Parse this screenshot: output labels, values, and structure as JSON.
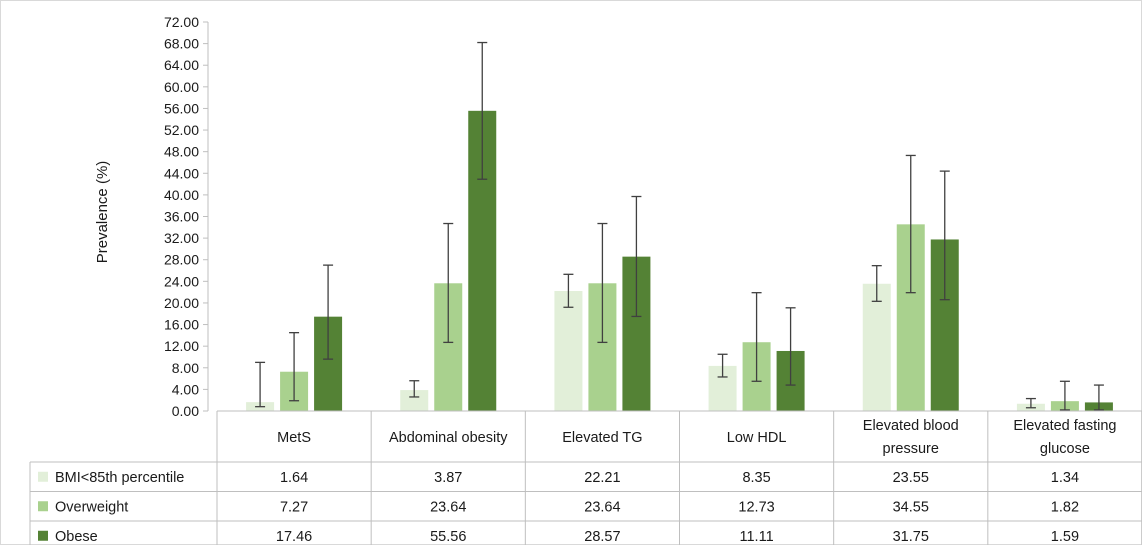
{
  "chart_data": {
    "type": "bar",
    "ylabel": "Prevalence (%)",
    "ylim": [
      0,
      72
    ],
    "yticks": [
      "0.00",
      "4.00",
      "8.00",
      "12.00",
      "16.00",
      "20.00",
      "24.00",
      "28.00",
      "32.00",
      "36.00",
      "40.00",
      "44.00",
      "48.00",
      "52.00",
      "56.00",
      "60.00",
      "64.00",
      "68.00",
      "72.00"
    ],
    "grid": false,
    "legend_placement": "data-table-left",
    "categories": [
      [
        "MetS"
      ],
      [
        "Abdominal obesity"
      ],
      [
        "Elevated TG"
      ],
      [
        "Low HDL"
      ],
      [
        "Elevated blood",
        "pressure"
      ],
      [
        "Elevated fasting",
        "glucose"
      ]
    ],
    "series": [
      {
        "name": "BMI<85th percentile",
        "color": "#e2efd9",
        "values": [
          1.64,
          3.87,
          22.21,
          8.35,
          23.55,
          1.34
        ],
        "labels": [
          "1.64",
          "3.87",
          "22.21",
          "8.35",
          "23.55",
          "1.34"
        ],
        "error_low": [
          0.8,
          2.6,
          19.2,
          6.3,
          20.3,
          0.6
        ],
        "error_high": [
          9.0,
          5.6,
          25.3,
          10.5,
          26.9,
          2.3
        ]
      },
      {
        "name": "Overweight",
        "color": "#a9d18e",
        "values": [
          7.27,
          23.64,
          23.64,
          12.73,
          34.55,
          1.82
        ],
        "labels": [
          "7.27",
          "23.64",
          "23.64",
          "12.73",
          "34.55",
          "1.82"
        ],
        "error_low": [
          1.9,
          12.7,
          12.7,
          5.5,
          21.9,
          0.2
        ],
        "error_high": [
          14.5,
          34.7,
          34.7,
          21.9,
          47.3,
          5.5
        ]
      },
      {
        "name": "Obese",
        "color": "#548235",
        "values": [
          17.46,
          55.56,
          28.57,
          11.11,
          31.75,
          1.59
        ],
        "labels": [
          "17.46",
          "55.56",
          "28.57",
          "11.11",
          "31.75",
          "1.59"
        ],
        "error_low": [
          9.6,
          42.9,
          17.5,
          4.8,
          20.6,
          0.2
        ],
        "error_high": [
          27.0,
          68.2,
          39.7,
          19.1,
          44.4,
          4.8
        ]
      }
    ]
  }
}
